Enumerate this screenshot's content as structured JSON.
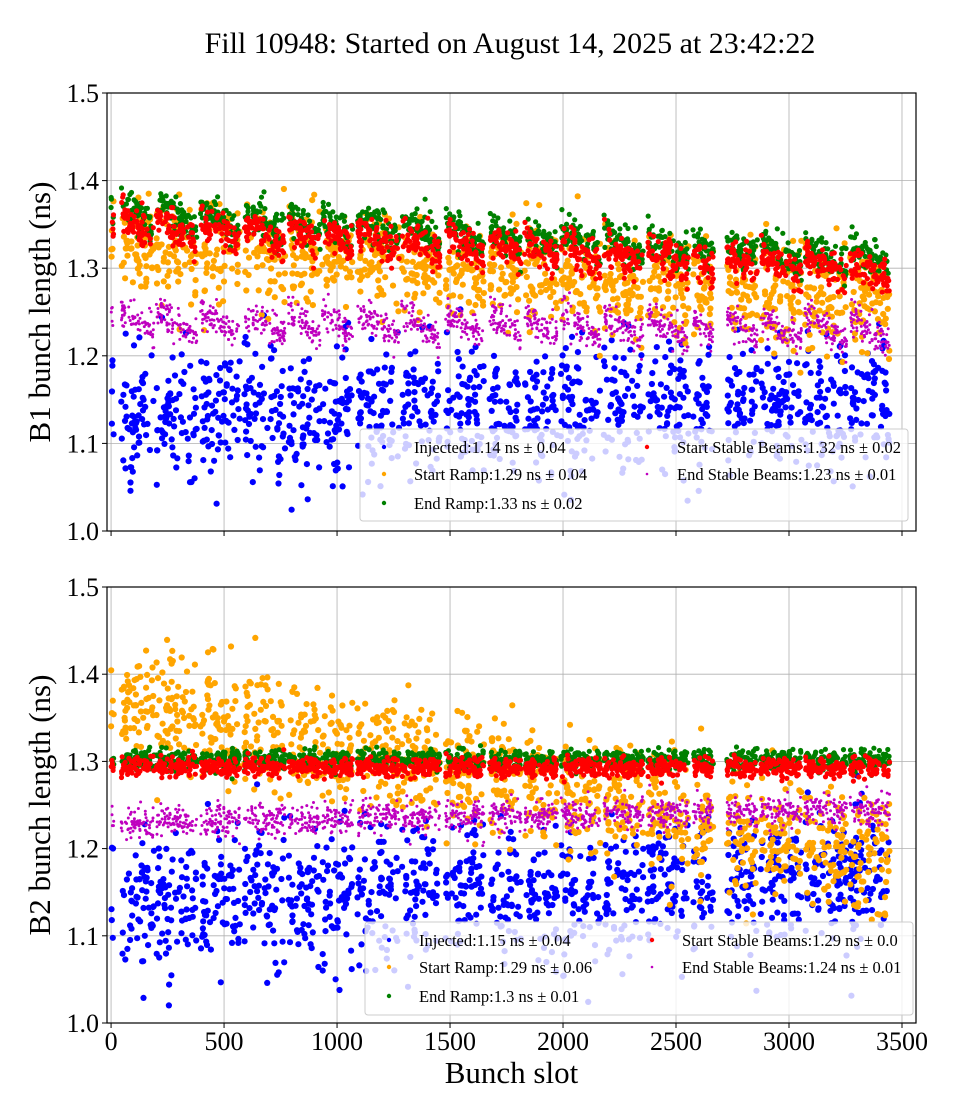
{
  "figure": {
    "title": "Fill 10948: Started on August 14, 2025 at 23:42:22"
  },
  "chart_data": [
    {
      "type": "scatter",
      "panel": "top",
      "title": "",
      "xlabel": "",
      "ylabel": "B1 bunch length (ns)",
      "xlim": [
        -18,
        3562
      ],
      "ylim": [
        1.0,
        1.5
      ],
      "xticks": [
        0,
        500,
        1000,
        1500,
        2000,
        2500,
        3000,
        3500
      ],
      "xtick_labels": [
        "",
        "",
        "",
        "",
        "",
        "",
        "",
        ""
      ],
      "yticks": [
        1.0,
        1.1,
        1.2,
        1.3,
        1.4,
        1.5
      ],
      "ytick_labels": [
        "1.0",
        "1.1",
        "1.2",
        "1.3",
        "1.4",
        "1.5"
      ],
      "grid": true,
      "legend_position": "lower-right",
      "legend_columns": 2,
      "trains": [
        [
          0,
          12
        ],
        [
          45,
          190
        ],
        [
          200,
          380
        ],
        [
          395,
          570
        ],
        [
          590,
          770
        ],
        [
          785,
          925
        ],
        [
          935,
          1070
        ],
        [
          1090,
          1275
        ],
        [
          1285,
          1455
        ],
        [
          1480,
          1650
        ],
        [
          1675,
          1815
        ],
        [
          1830,
          1975
        ],
        [
          1990,
          2165
        ],
        [
          2180,
          2355
        ],
        [
          2375,
          2555
        ],
        [
          2575,
          2665
        ],
        [
          2725,
          2860
        ],
        [
          2875,
          3055
        ],
        [
          3070,
          3255
        ],
        [
          3270,
          3445
        ]
      ],
      "series": [
        {
          "name": "Injected",
          "label": "Injected:1.14 ns ± 0.04",
          "color": "#0000ff",
          "mean": 1.14,
          "std": 0.04,
          "trend_start": 1.13,
          "trend_end": 1.15,
          "marker": "large"
        },
        {
          "name": "Start Ramp",
          "label": "Start Ramp:1.29 ns ± 0.04",
          "color": "#ffa500",
          "mean": 1.29,
          "std": 0.04,
          "trend_start": 1.33,
          "trend_end": 1.26,
          "marker": "large"
        },
        {
          "name": "End Ramp",
          "label": "End Ramp:1.33 ns ± 0.02",
          "color": "#008000",
          "mean": 1.33,
          "std": 0.02,
          "trend_start": 1.36,
          "trend_end": 1.305,
          "marker": "medium"
        },
        {
          "name": "Start Stable Beams",
          "label": "Start Stable Beams:1.32 ns ± 0.02",
          "color": "#ff0000",
          "mean": 1.32,
          "std": 0.02,
          "trend_start": 1.35,
          "trend_end": 1.295,
          "marker": "medium"
        },
        {
          "name": "End Stable Beams",
          "label": "End Stable Beams:1.23 ns ± 0.01",
          "color": "#bf00bf",
          "mean": 1.23,
          "std": 0.01,
          "trend_start": 1.235,
          "trend_end": 1.225,
          "marker": "small"
        }
      ]
    },
    {
      "type": "scatter",
      "panel": "bottom",
      "title": "",
      "xlabel": "Bunch slot",
      "ylabel": "B2 bunch length (ns)",
      "xlim": [
        -18,
        3562
      ],
      "ylim": [
        1.0,
        1.5
      ],
      "xticks": [
        0,
        500,
        1000,
        1500,
        2000,
        2500,
        3000,
        3500
      ],
      "xtick_labels": [
        "0",
        "500",
        "1000",
        "1500",
        "2000",
        "2500",
        "3000",
        "3500"
      ],
      "yticks": [
        1.0,
        1.1,
        1.2,
        1.3,
        1.4,
        1.5
      ],
      "ytick_labels": [
        "1.0",
        "1.1",
        "1.2",
        "1.3",
        "1.4",
        "1.5"
      ],
      "grid": true,
      "legend_position": "lower-right",
      "legend_columns": 2,
      "trains": [
        [
          0,
          12
        ],
        [
          45,
          190
        ],
        [
          200,
          380
        ],
        [
          395,
          570
        ],
        [
          590,
          770
        ],
        [
          785,
          925
        ],
        [
          935,
          1070
        ],
        [
          1090,
          1275
        ],
        [
          1285,
          1455
        ],
        [
          1480,
          1650
        ],
        [
          1675,
          1815
        ],
        [
          1830,
          1975
        ],
        [
          1990,
          2165
        ],
        [
          2180,
          2355
        ],
        [
          2375,
          2555
        ],
        [
          2575,
          2665
        ],
        [
          2725,
          2860
        ],
        [
          2875,
          3055
        ],
        [
          3070,
          3255
        ],
        [
          3270,
          3445
        ]
      ],
      "series": [
        {
          "name": "Injected",
          "label": "Injected:1.15 ns ± 0.04",
          "color": "#0000ff",
          "mean": 1.15,
          "std": 0.04,
          "trend_start": 1.14,
          "trend_end": 1.16,
          "marker": "large"
        },
        {
          "name": "Start Ramp",
          "label": "Start Ramp:1.29 ns ± 0.06",
          "color": "#ffa500",
          "mean": 1.29,
          "std": 0.06,
          "trend_start": 1.37,
          "trend_end": 1.19,
          "marker": "large"
        },
        {
          "name": "End Ramp",
          "label": "End Ramp:1.3 ns ± 0.01",
          "color": "#008000",
          "mean": 1.3,
          "std": 0.01,
          "trend_start": 1.302,
          "trend_end": 1.302,
          "marker": "medium"
        },
        {
          "name": "Start Stable Beams",
          "label": "Start Stable Beams:1.29 ns ± 0.0",
          "color": "#ff0000",
          "mean": 1.29,
          "std": 0.0,
          "trend_start": 1.293,
          "trend_end": 1.293,
          "marker": "medium"
        },
        {
          "name": "End Stable Beams",
          "label": "End Stable Beams:1.24 ns ± 0.01",
          "color": "#bf00bf",
          "mean": 1.24,
          "std": 0.01,
          "trend_start": 1.23,
          "trend_end": 1.245,
          "marker": "small"
        }
      ]
    }
  ]
}
